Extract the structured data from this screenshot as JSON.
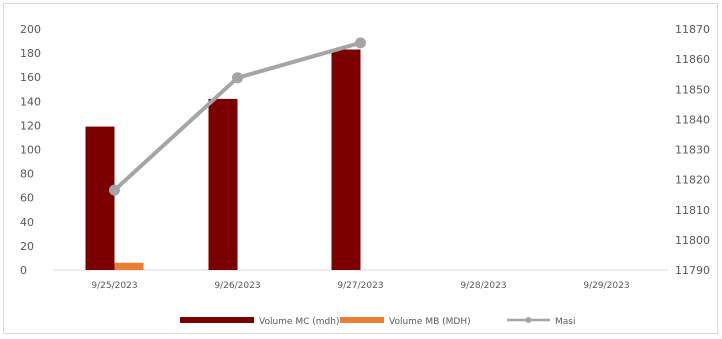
{
  "chart_data": {
    "type": "bar",
    "title": "",
    "categories": [
      "9/25/2023",
      "9/26/2023",
      "9/27/2023",
      "9/28/2023",
      "9/29/2023"
    ],
    "series": [
      {
        "name": "Volume MC (mdh)",
        "type": "bar",
        "axis": "left",
        "color": "#7B0000",
        "values": [
          119,
          142,
          183,
          null,
          null
        ]
      },
      {
        "name": "Volume MB (MDH)",
        "type": "bar",
        "axis": "left",
        "color": "#ED7D31",
        "values": [
          6,
          null,
          null,
          null,
          null
        ]
      },
      {
        "name": "Masi",
        "type": "line",
        "axis": "right",
        "color": "#A5A5A5",
        "values": [
          11816.5,
          11853.8,
          11865.4,
          null,
          null
        ]
      }
    ],
    "y_left": {
      "min": 0,
      "max": 200,
      "step": 20,
      "ticks": [
        "0",
        "20",
        "40",
        "60",
        "80",
        "100",
        "120",
        "140",
        "160",
        "180",
        "200"
      ]
    },
    "y_right": {
      "min": 11790,
      "max": 11870,
      "step": 10,
      "ticks": [
        "11790",
        "11800",
        "11810",
        "11820",
        "11830",
        "11840",
        "11850",
        "11860",
        "11870"
      ]
    },
    "grid": false,
    "legend_position": "bottom"
  }
}
